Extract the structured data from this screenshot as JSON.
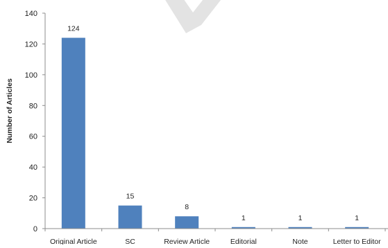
{
  "chart_data": {
    "type": "bar",
    "title": "",
    "xlabel": "",
    "ylabel": "Number of Articles",
    "ylim": [
      0,
      140
    ],
    "yticks": [
      0,
      20,
      40,
      60,
      80,
      100,
      120,
      140
    ],
    "grid": false,
    "legend": "none",
    "categories": [
      "Original Article",
      "SC",
      "Review Article",
      "Editorial",
      "Note",
      "Letter to Editor"
    ],
    "values": [
      124,
      15,
      8,
      1,
      1,
      1
    ],
    "data_labels": [
      "124",
      "15",
      "8",
      "1",
      "1",
      "1"
    ],
    "bar_color": "#4f81bd",
    "axis_color": "#8c8c8c"
  }
}
